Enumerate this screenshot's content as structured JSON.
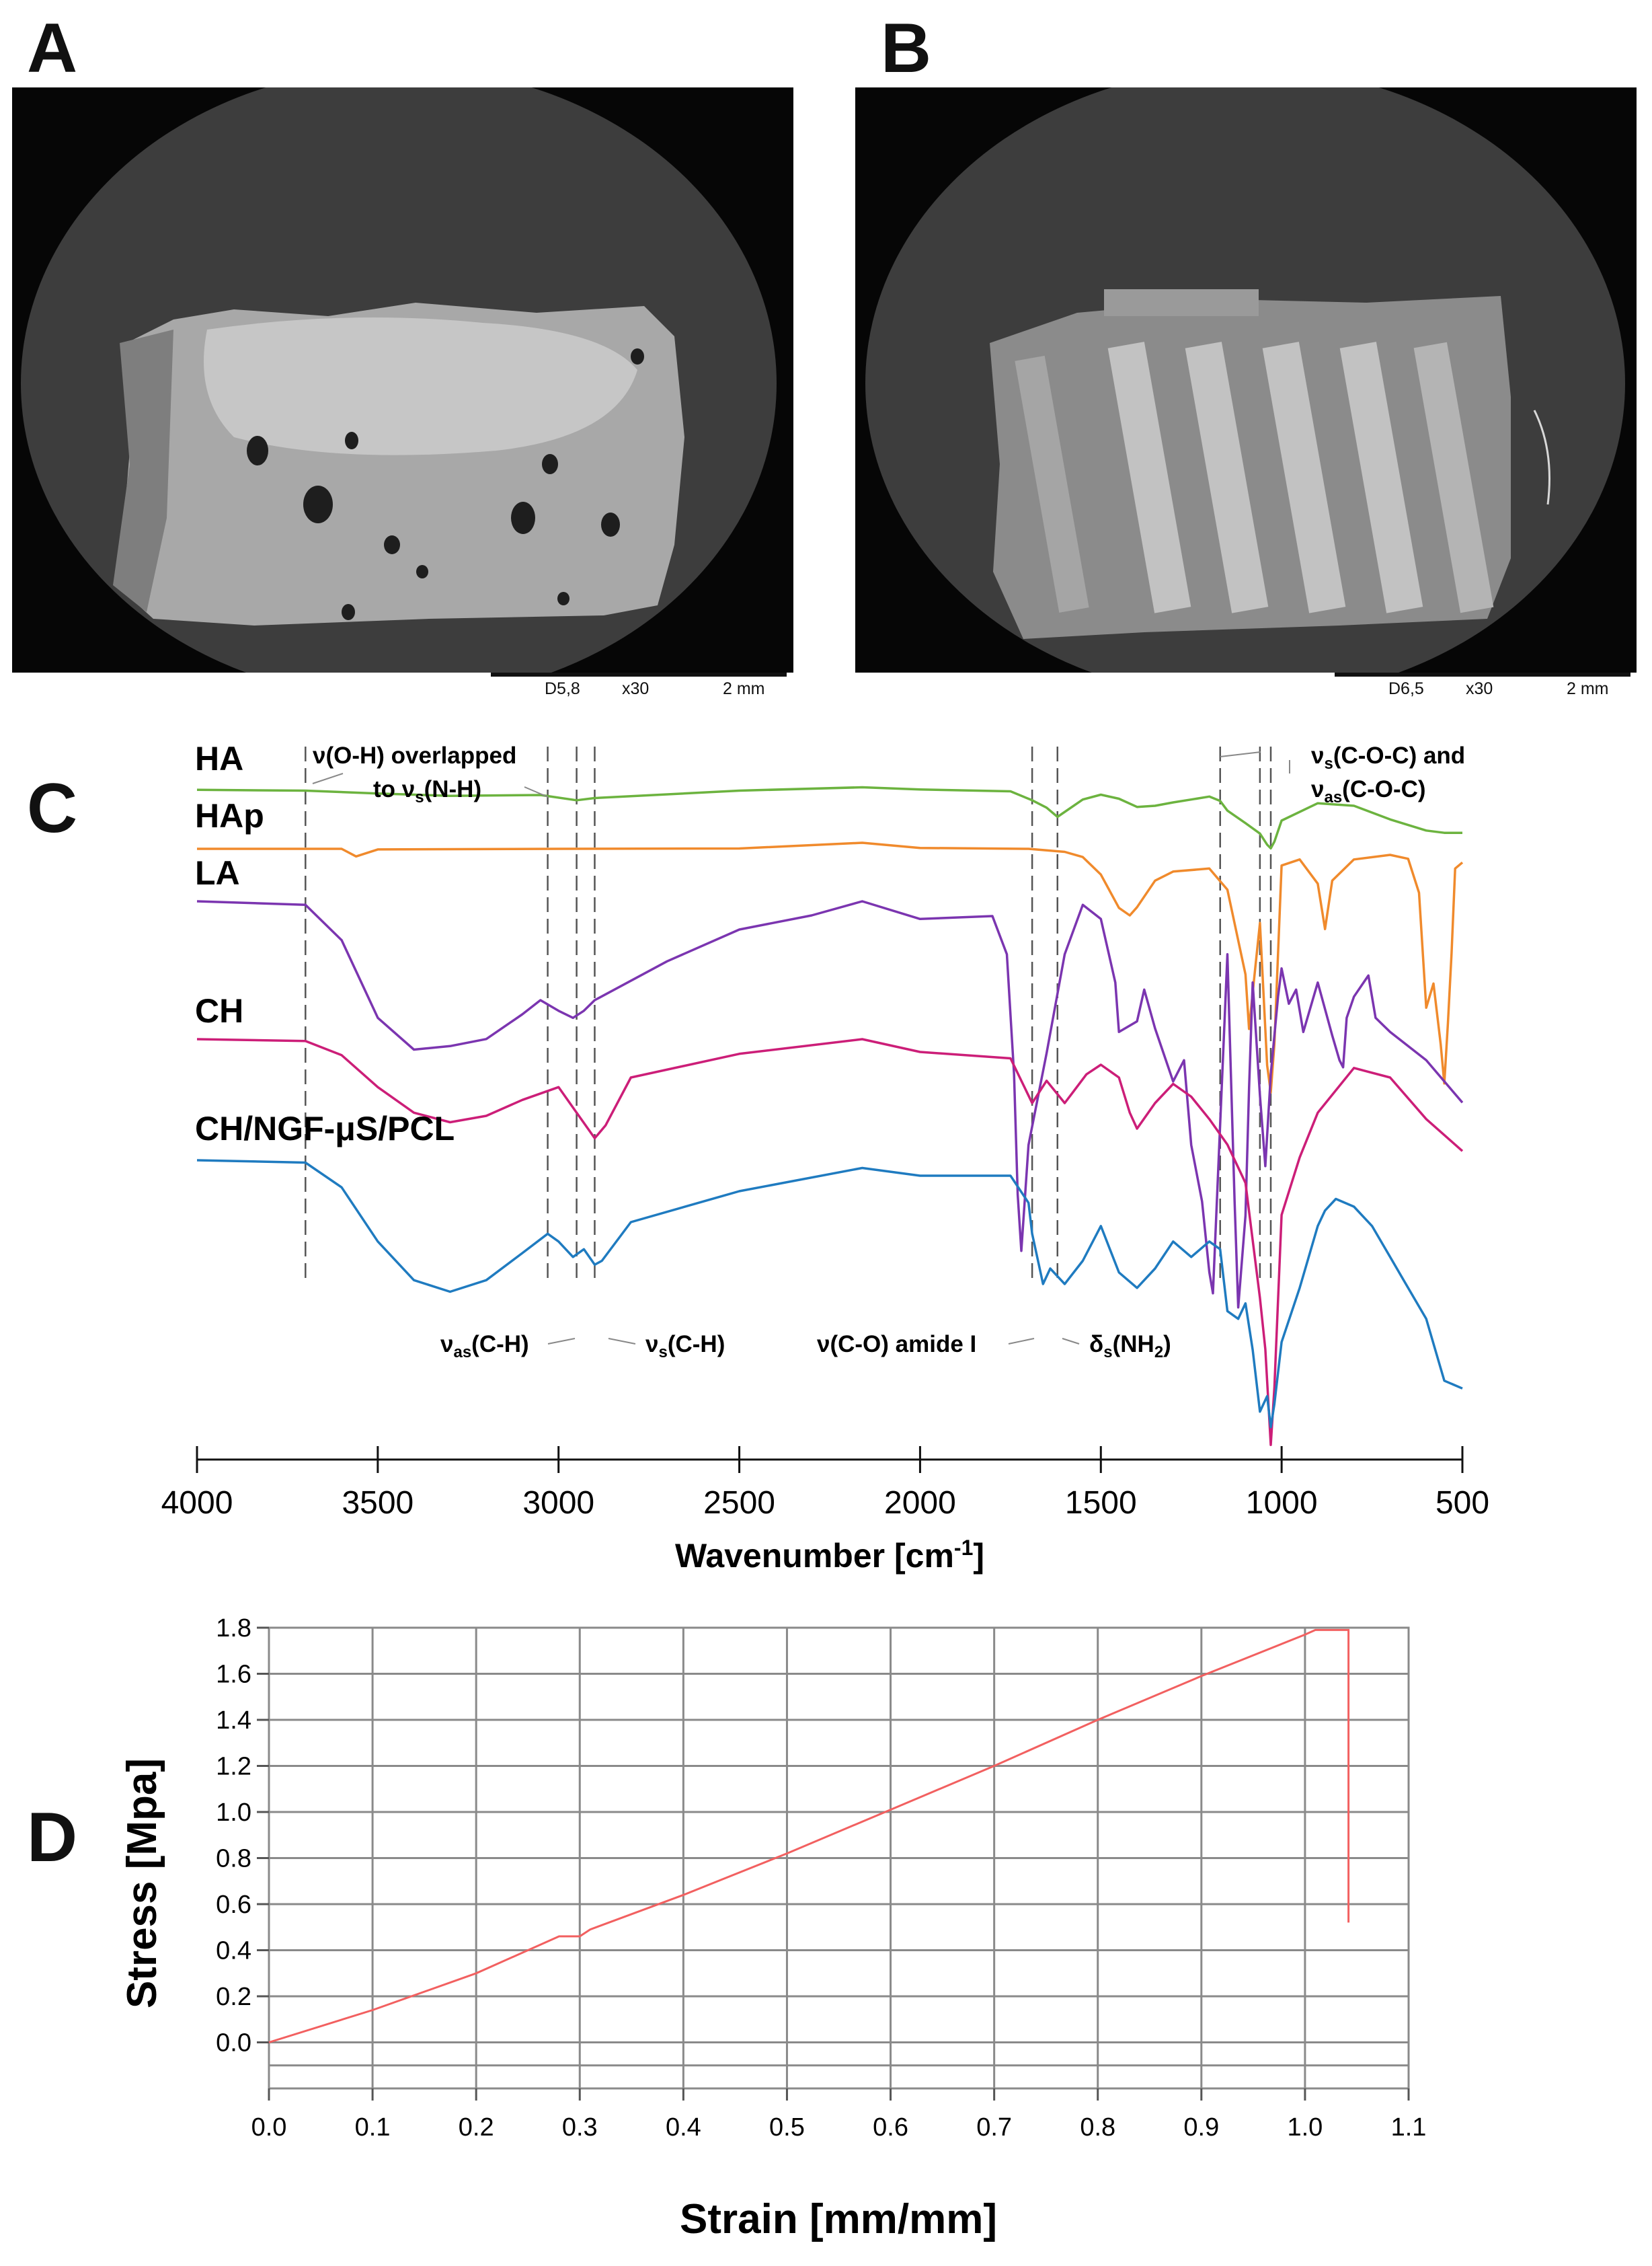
{
  "panels": {
    "a": "A",
    "b": "B",
    "c": "C",
    "d": "D"
  },
  "colors": {
    "HA": "#6cb33f",
    "HAp": "#f08a2c",
    "LA": "#7b35b0",
    "CH": "#cc1e78",
    "CH/NGF-μS/PCL": "#1f7bc0",
    "stress_line": "#f26060",
    "grid": "#8a8a8a",
    "sem_gray": "#3a3a3a",
    "sem_dark": "#060606"
  },
  "sem_a": {
    "code": "D5,8",
    "mag": "x30",
    "scale": "2 mm"
  },
  "sem_b": {
    "code": "D6,5",
    "mag": "x30",
    "scale": "2 mm"
  },
  "annotations": {
    "oh_line1": "ν(O-H) overlapped",
    "oh_line2a": "to ν",
    "oh_sub": "s",
    "oh_line2b": "(N-H)",
    "coc1a": "ν",
    "coc1_sub": "s",
    "coc1b": "(C-O-C) and",
    "coc2a": "ν",
    "coc2_sub": "as",
    "coc2b": "(C-O-C)",
    "ch_as_a": "ν",
    "ch_as_sub": "as",
    "ch_as_b": "(C-H)",
    "ch_s_a": "ν",
    "ch_s_sub": "s",
    "ch_s_b": "(C-H)",
    "amide": "ν(C-O) amide I",
    "nh2_a": "δ",
    "nh2_sub": "s",
    "nh2_b": "(NH",
    "nh2_sub2": "2",
    "nh2_c": ")"
  },
  "chart_data": [
    {
      "type": "line",
      "title": "",
      "xlabel": "Wavenumber [cm-1]",
      "xlabel_main": "Wavenumber [cm",
      "xlabel_sup": "-1",
      "xlabel_end": "]",
      "ylabel": "",
      "xlim": [
        4000,
        500
      ],
      "x_ticks": [
        4000,
        3500,
        3000,
        2500,
        2000,
        1500,
        1000,
        500
      ],
      "x_tick_labels": [
        "4000",
        "3500",
        "3000",
        "2500",
        "2000",
        "1500",
        "1000",
        "500"
      ],
      "reference_lines": [
        3700,
        3030,
        2950,
        2900,
        1690,
        1620,
        1170,
        1060,
        1030
      ],
      "series": [
        {
          "name": "HA",
          "x": [
            4000,
            3700,
            3500,
            3300,
            3050,
            2950,
            2900,
            2500,
            2160,
            2000,
            1750,
            1690,
            1650,
            1620,
            1550,
            1500,
            1450,
            1400,
            1350,
            1300,
            1250,
            1200,
            1170,
            1150,
            1100,
            1060,
            1040,
            1030,
            1020,
            1000,
            900,
            800,
            700,
            600,
            550,
            500
          ],
          "y": [
            0.98,
            0.96,
            0.88,
            0.82,
            0.84,
            0.7,
            0.76,
            0.96,
            1.05,
            0.99,
            0.94,
            0.7,
            0.5,
            0.25,
            0.72,
            0.85,
            0.74,
            0.52,
            0.55,
            0.64,
            0.72,
            0.8,
            0.68,
            0.42,
            0.08,
            -0.2,
            -0.5,
            -0.6,
            -0.42,
            0.15,
            0.62,
            0.55,
            0.18,
            -0.12,
            -0.18,
            -0.18
          ]
        },
        {
          "name": "HAp",
          "x": [
            4000,
            3700,
            3600,
            3560,
            3500,
            3000,
            2500,
            2160,
            2000,
            1700,
            1600,
            1550,
            1500,
            1450,
            1420,
            1400,
            1350,
            1300,
            1200,
            1150,
            1100,
            1090,
            1080,
            1060,
            1040,
            1030,
            1020,
            1000,
            950,
            900,
            880,
            860,
            800,
            700,
            650,
            620,
            600,
            580,
            560,
            550,
            540,
            530,
            520,
            500
          ],
          "y": [
            0.95,
            0.95,
            0.95,
            0.7,
            0.93,
            0.95,
            0.96,
            1.15,
            0.98,
            0.95,
            0.85,
            0.68,
            0.1,
            -1.0,
            -1.25,
            -0.98,
            -0.1,
            0.2,
            0.3,
            -0.4,
            -3.2,
            -5.0,
            -3.8,
            -1.5,
            -6.2,
            -7.1,
            -5.5,
            0.4,
            0.6,
            -0.2,
            -1.7,
            -0.1,
            0.6,
            0.75,
            0.62,
            -0.5,
            -4.3,
            -3.5,
            -5.5,
            -6.8,
            -4.8,
            -2.5,
            0.3,
            0.5
          ]
        },
        {
          "name": "LA",
          "x": [
            4000,
            3700,
            3600,
            3500,
            3400,
            3300,
            3200,
            3100,
            3050,
            3000,
            2960,
            2930,
            2900,
            2700,
            2500,
            2300,
            2160,
            2000,
            1800,
            1760,
            1740,
            1730,
            1720,
            1700,
            1650,
            1600,
            1550,
            1500,
            1460,
            1450,
            1400,
            1380,
            1350,
            1300,
            1270,
            1250,
            1220,
            1200,
            1190,
            1150,
            1130,
            1120,
            1100,
            1090,
            1080,
            1060,
            1045,
            1030,
            1010,
            1000,
            980,
            960,
            940,
            900,
            860,
            840,
            830,
            820,
            800,
            760,
            740,
            700,
            600,
            500
          ],
          "y": [
            0.95,
            0.9,
            0.4,
            -0.7,
            -1.15,
            -1.1,
            -1.0,
            -0.65,
            -0.45,
            -0.6,
            -0.7,
            -0.6,
            -0.45,
            0.1,
            0.55,
            0.75,
            0.95,
            0.7,
            0.74,
            0.2,
            -1.5,
            -3.2,
            -4.0,
            -2.5,
            -1.2,
            0.2,
            0.9,
            0.7,
            -0.2,
            -0.9,
            -0.75,
            -0.3,
            -0.85,
            -1.6,
            -1.3,
            -2.5,
            -3.3,
            -4.3,
            -4.6,
            0.2,
            -3.3,
            -4.8,
            -3.5,
            -1.7,
            -0.2,
            -1.8,
            -2.8,
            -1.5,
            -0.4,
            0.0,
            -0.5,
            -0.3,
            -0.9,
            -0.2,
            -0.95,
            -1.3,
            -1.4,
            -0.7,
            -0.4,
            -0.1,
            -0.7,
            -0.9,
            -1.3,
            -1.9
          ]
        },
        {
          "name": "CH",
          "x": [
            4000,
            3700,
            3600,
            3500,
            3400,
            3300,
            3200,
            3100,
            3000,
            2950,
            2900,
            2870,
            2800,
            2500,
            2160,
            2000,
            1750,
            1690,
            1650,
            1600,
            1580,
            1540,
            1500,
            1450,
            1420,
            1400,
            1350,
            1300,
            1250,
            1200,
            1150,
            1100,
            1060,
            1045,
            1030,
            1020,
            1000,
            950,
            900,
            800,
            700,
            600,
            500
          ],
          "y": [
            0.95,
            0.92,
            0.7,
            0.2,
            -0.2,
            -0.35,
            -0.25,
            0.0,
            0.2,
            -0.2,
            -0.6,
            -0.4,
            0.35,
            0.72,
            0.95,
            0.75,
            0.65,
            -0.05,
            0.3,
            -0.05,
            0.1,
            0.4,
            0.55,
            0.35,
            -0.2,
            -0.45,
            -0.05,
            0.25,
            0.05,
            -0.3,
            -0.7,
            -1.3,
            -3.1,
            -3.9,
            -5.4,
            -4.5,
            -1.8,
            -0.9,
            -0.2,
            0.5,
            0.35,
            -0.3,
            -0.8
          ]
        },
        {
          "name": "CH/NGF-μS/PCL",
          "x": [
            4000,
            3700,
            3600,
            3500,
            3400,
            3300,
            3200,
            3100,
            3030,
            3000,
            2960,
            2930,
            2900,
            2880,
            2800,
            2500,
            2160,
            2000,
            1750,
            1700,
            1690,
            1660,
            1640,
            1600,
            1550,
            1500,
            1450,
            1400,
            1380,
            1350,
            1300,
            1250,
            1200,
            1170,
            1150,
            1120,
            1100,
            1080,
            1060,
            1040,
            1030,
            1020,
            1000,
            950,
            900,
            880,
            850,
            800,
            750,
            700,
            650,
            600,
            550,
            500
          ],
          "y": [
            0.95,
            0.92,
            0.6,
            -0.1,
            -0.6,
            -0.75,
            -0.6,
            -0.25,
            0.0,
            -0.1,
            -0.3,
            -0.2,
            -0.4,
            -0.35,
            0.15,
            0.55,
            0.85,
            0.75,
            0.75,
            0.4,
            0.0,
            -0.65,
            -0.45,
            -0.65,
            -0.35,
            0.1,
            -0.5,
            -0.7,
            -0.6,
            -0.45,
            -0.1,
            -0.3,
            -0.1,
            -0.2,
            -1.0,
            -1.1,
            -0.9,
            -1.5,
            -2.3,
            -2.1,
            -2.5,
            -2.2,
            -1.4,
            -0.7,
            0.1,
            0.3,
            0.45,
            0.35,
            0.1,
            -0.3,
            -0.7,
            -1.1,
            -1.9,
            -2.0
          ]
        }
      ]
    },
    {
      "type": "line",
      "title": "",
      "xlabel": "Strain [mm/mm]",
      "ylabel": "Stress [Mpa]",
      "xlim": [
        0.0,
        1.1
      ],
      "ylim": [
        -0.2,
        1.8
      ],
      "grid": true,
      "x_ticks": [
        0.0,
        0.1,
        0.2,
        0.3,
        0.4,
        0.5,
        0.6,
        0.7,
        0.8,
        0.9,
        1.0,
        1.1
      ],
      "x_tick_labels": [
        "0.0",
        "0.1",
        "0.2",
        "0.3",
        "0.4",
        "0.5",
        "0.6",
        "0.7",
        "0.8",
        "0.9",
        "1.0",
        "1.1"
      ],
      "y_ticks": [
        0.0,
        0.2,
        0.4,
        0.6,
        0.8,
        1.0,
        1.2,
        1.4,
        1.6,
        1.8
      ],
      "y_tick_labels": [
        "0.0",
        "0.2",
        "0.4",
        "0.6",
        "0.8",
        "1.0",
        "1.2",
        "1.4",
        "1.6",
        "1.8"
      ],
      "series": [
        {
          "name": "Stress-strain",
          "x": [
            0.0,
            0.1,
            0.2,
            0.28,
            0.3,
            0.31,
            0.4,
            0.5,
            0.6,
            0.7,
            0.8,
            0.9,
            1.0,
            1.01,
            1.04,
            1.042,
            1.042
          ],
          "y": [
            0.0,
            0.14,
            0.3,
            0.46,
            0.46,
            0.49,
            0.64,
            0.82,
            1.01,
            1.2,
            1.4,
            1.59,
            1.77,
            1.79,
            1.79,
            1.79,
            0.52
          ]
        }
      ]
    }
  ]
}
